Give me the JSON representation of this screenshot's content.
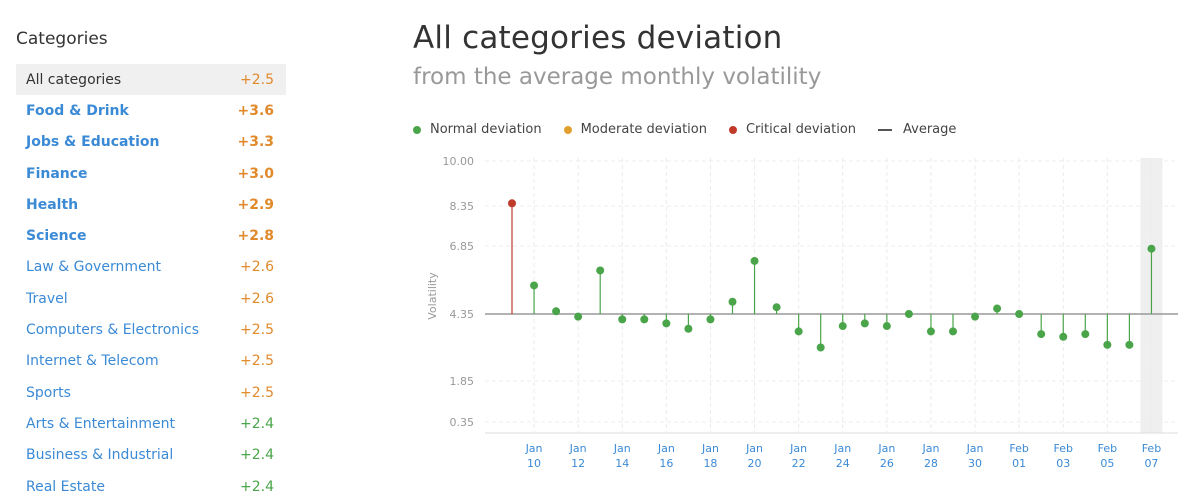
{
  "sidebar": {
    "title": "Categories",
    "items": [
      {
        "label": "All categories",
        "value": "+2.5",
        "color": "#e08a2c",
        "selected": true,
        "bold": false
      },
      {
        "label": "Food & Drink",
        "value": "+3.6",
        "color": "#e08a2c",
        "selected": false,
        "bold": true
      },
      {
        "label": "Jobs & Education",
        "value": "+3.3",
        "color": "#e08a2c",
        "selected": false,
        "bold": true
      },
      {
        "label": "Finance",
        "value": "+3.0",
        "color": "#e08a2c",
        "selected": false,
        "bold": true
      },
      {
        "label": "Health",
        "value": "+2.9",
        "color": "#e08a2c",
        "selected": false,
        "bold": true
      },
      {
        "label": "Science",
        "value": "+2.8",
        "color": "#e08a2c",
        "selected": false,
        "bold": true
      },
      {
        "label": "Law & Government",
        "value": "+2.6",
        "color": "#e08a2c",
        "selected": false,
        "bold": false
      },
      {
        "label": "Travel",
        "value": "+2.6",
        "color": "#e08a2c",
        "selected": false,
        "bold": false
      },
      {
        "label": "Computers & Electronics",
        "value": "+2.5",
        "color": "#e08a2c",
        "selected": false,
        "bold": false
      },
      {
        "label": "Internet & Telecom",
        "value": "+2.5",
        "color": "#e08a2c",
        "selected": false,
        "bold": false
      },
      {
        "label": "Sports",
        "value": "+2.5",
        "color": "#e08a2c",
        "selected": false,
        "bold": false
      },
      {
        "label": "Arts & Entertainment",
        "value": "+2.4",
        "color": "#4aa54a",
        "selected": false,
        "bold": false
      },
      {
        "label": "Business & Industrial",
        "value": "+2.4",
        "color": "#4aa54a",
        "selected": false,
        "bold": false
      },
      {
        "label": "Real Estate",
        "value": "+2.4",
        "color": "#4aa54a",
        "selected": false,
        "bold": false
      }
    ]
  },
  "header": {
    "title": "All categories deviation",
    "subtitle": "from the average monthly volatility"
  },
  "legend": [
    {
      "label": "Normal deviation",
      "marker": "dot",
      "color": "#4aa54a"
    },
    {
      "label": "Moderate deviation",
      "marker": "dot",
      "color": "#e0a030"
    },
    {
      "label": "Critical deviation",
      "marker": "dot",
      "color": "#c0392b"
    },
    {
      "label": "Average",
      "marker": "line",
      "color": "#555555"
    }
  ],
  "colors": {
    "normal": "#4aa54a",
    "moderate": "#e0a030",
    "critical": "#c0392b",
    "average": "#999999",
    "tick_date": "#3b8ad6",
    "highlight": "#efefef"
  },
  "chart_data": {
    "type": "scatter",
    "ylabel": "Volatility",
    "y_ticks": [
      "10.00",
      "8.35",
      "6.85",
      "4.35",
      "1.85",
      "0.35"
    ],
    "average": 4.35,
    "highlight_category": "Feb 07",
    "x_labels": [
      {
        "month": "Jan",
        "day": "10"
      },
      {
        "month": "Jan",
        "day": "12"
      },
      {
        "month": "Jan",
        "day": "14"
      },
      {
        "month": "Jan",
        "day": "16"
      },
      {
        "month": "Jan",
        "day": "18"
      },
      {
        "month": "Jan",
        "day": "20"
      },
      {
        "month": "Jan",
        "day": "22"
      },
      {
        "month": "Jan",
        "day": "24"
      },
      {
        "month": "Jan",
        "day": "26"
      },
      {
        "month": "Jan",
        "day": "28"
      },
      {
        "month": "Jan",
        "day": "30"
      },
      {
        "month": "Feb",
        "day": "01"
      },
      {
        "month": "Feb",
        "day": "03"
      },
      {
        "month": "Feb",
        "day": "05"
      },
      {
        "month": "Feb",
        "day": "07"
      }
    ],
    "points": [
      {
        "date": "Jan 09",
        "value": 8.45,
        "level": "critical"
      },
      {
        "date": "Jan 10",
        "value": 5.4,
        "level": "normal"
      },
      {
        "date": "Jan 11",
        "value": 4.45,
        "level": "normal"
      },
      {
        "date": "Jan 12",
        "value": 4.25,
        "level": "normal"
      },
      {
        "date": "Jan 13",
        "value": 5.95,
        "level": "normal"
      },
      {
        "date": "Jan 14",
        "value": 4.15,
        "level": "normal"
      },
      {
        "date": "Jan 15",
        "value": 4.15,
        "level": "normal"
      },
      {
        "date": "Jan 16",
        "value": 4.0,
        "level": "normal"
      },
      {
        "date": "Jan 17",
        "value": 3.8,
        "level": "normal"
      },
      {
        "date": "Jan 18",
        "value": 4.15,
        "level": "normal"
      },
      {
        "date": "Jan 19",
        "value": 4.8,
        "level": "normal"
      },
      {
        "date": "Jan 20",
        "value": 6.3,
        "level": "normal"
      },
      {
        "date": "Jan 21",
        "value": 4.6,
        "level": "normal"
      },
      {
        "date": "Jan 22",
        "value": 3.7,
        "level": "normal"
      },
      {
        "date": "Jan 23",
        "value": 3.1,
        "level": "normal"
      },
      {
        "date": "Jan 24",
        "value": 3.9,
        "level": "normal"
      },
      {
        "date": "Jan 25",
        "value": 4.0,
        "level": "normal"
      },
      {
        "date": "Jan 26",
        "value": 3.9,
        "level": "normal"
      },
      {
        "date": "Jan 27",
        "value": 4.35,
        "level": "normal"
      },
      {
        "date": "Jan 28",
        "value": 3.7,
        "level": "normal"
      },
      {
        "date": "Jan 29",
        "value": 3.7,
        "level": "normal"
      },
      {
        "date": "Jan 30",
        "value": 4.25,
        "level": "normal"
      },
      {
        "date": "Jan 31",
        "value": 4.55,
        "level": "normal"
      },
      {
        "date": "Feb 01",
        "value": 4.35,
        "level": "normal"
      },
      {
        "date": "Feb 02",
        "value": 3.6,
        "level": "normal"
      },
      {
        "date": "Feb 03",
        "value": 3.5,
        "level": "normal"
      },
      {
        "date": "Feb 04",
        "value": 3.6,
        "level": "normal"
      },
      {
        "date": "Feb 05",
        "value": 3.2,
        "level": "normal"
      },
      {
        "date": "Feb 06",
        "value": 3.2,
        "level": "normal"
      },
      {
        "date": "Feb 07",
        "value": 6.75,
        "level": "normal"
      }
    ]
  }
}
